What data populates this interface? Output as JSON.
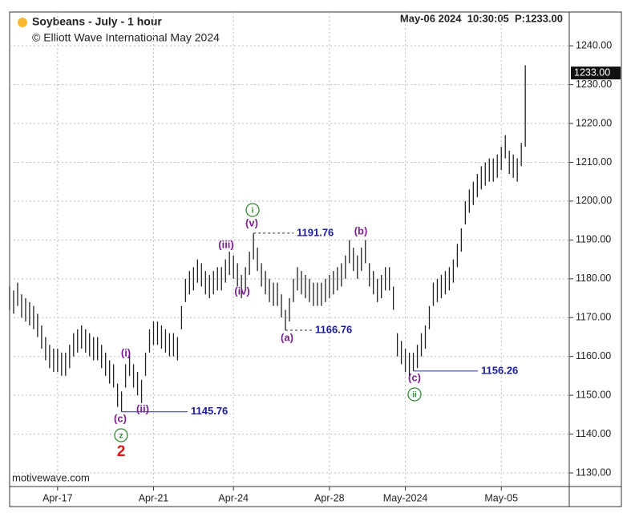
{
  "chart_data": {
    "type": "range-bar",
    "title": "Soybeans - July - 1 hour",
    "subtitle": "© Elliott Wave International May 2024",
    "status": "May-06 2024  10:30:05  P:1233.00",
    "watermark": "motivewave.com",
    "color": "#222222",
    "high": [
      1178,
      1177,
      1179,
      1176,
      1175,
      1174,
      1173,
      1171,
      1168,
      1165,
      1163,
      1162,
      1162,
      1161,
      1161,
      1163,
      1166,
      1167,
      1168,
      1167,
      1166,
      1165,
      1165,
      1163,
      1161,
      1159,
      1158,
      1153,
      1151,
      1158,
      1161,
      1158,
      1156,
      1154,
      1161,
      1167,
      1169,
      1169,
      1168,
      1167,
      1166,
      1166,
      1165,
      1173,
      1180,
      1182,
      1183,
      1185,
      1184,
      1182,
      1181,
      1182,
      1183,
      1183,
      1185,
      1187,
      1186,
      1184,
      1181,
      1183,
      1187,
      1191.76,
      1188,
      1184,
      1182,
      1180,
      1179,
      1179,
      1176,
      1172,
      1175,
      1180,
      1183,
      1182,
      1181,
      1180,
      1179,
      1179,
      1179,
      1180,
      1181,
      1182,
      1183,
      1184,
      1186,
      1190,
      1188,
      1186,
      1188,
      1190,
      1184,
      1182,
      1180,
      1181,
      1183,
      1183,
      1178,
      1166,
      1164,
      1162,
      1161,
      1161,
      1163,
      1166,
      1168,
      1173,
      1179,
      1180,
      1181,
      1182,
      1183,
      1185,
      1189,
      1193,
      1200,
      1203,
      1205,
      1207,
      1209,
      1210,
      1211,
      1211,
      1212,
      1214,
      1217,
      1213,
      1212,
      1211,
      1215,
      1235
    ],
    "low": [
      1172,
      1171,
      1173,
      1170,
      1169,
      1168,
      1167,
      1165,
      1162,
      1159,
      1157,
      1156,
      1156,
      1155,
      1155,
      1157,
      1160,
      1161,
      1162,
      1161,
      1160,
      1159,
      1159,
      1157,
      1155,
      1153,
      1152,
      1147,
      1145.76,
      1152,
      1155,
      1152,
      1150,
      1148,
      1155,
      1161,
      1163,
      1163,
      1162,
      1161,
      1160,
      1160,
      1159,
      1167,
      1174,
      1176,
      1177,
      1179,
      1178,
      1176,
      1175,
      1176,
      1177,
      1177,
      1179,
      1181,
      1180,
      1178,
      1175,
      1177,
      1181,
      1185,
      1182,
      1178,
      1176,
      1174,
      1173,
      1173,
      1170,
      1166.76,
      1169,
      1174,
      1177,
      1176,
      1175,
      1174,
      1173,
      1173,
      1173,
      1174,
      1175,
      1176,
      1177,
      1178,
      1180,
      1184,
      1182,
      1180,
      1182,
      1184,
      1178,
      1176,
      1174,
      1175,
      1177,
      1177,
      1172,
      1160,
      1158,
      1156,
      1155,
      1156.26,
      1157,
      1160,
      1162,
      1167,
      1173,
      1174,
      1175,
      1176,
      1177,
      1179,
      1183,
      1187,
      1194,
      1197,
      1199,
      1201,
      1203,
      1204,
      1205,
      1205,
      1206,
      1208,
      1211,
      1207,
      1206,
      1205,
      1209,
      1214
    ],
    "xlim": [
      0,
      140
    ],
    "xticks": [
      {
        "value": 12,
        "label": "Apr-17"
      },
      {
        "value": 36,
        "label": "Apr-21"
      },
      {
        "value": 56,
        "label": "Apr-24"
      },
      {
        "value": 80,
        "label": "Apr-28"
      },
      {
        "value": 99,
        "label": "May-2024"
      },
      {
        "value": 123,
        "label": "May-05"
      }
    ],
    "ylim": [
      1126.5,
      1248.7
    ],
    "yticks": [
      {
        "value": 1130,
        "label": "1130.00"
      },
      {
        "value": 1140,
        "label": "1140.00"
      },
      {
        "value": 1150,
        "label": "1150.00"
      },
      {
        "value": 1160,
        "label": "1160.00"
      },
      {
        "value": 1170,
        "label": "1170.00"
      },
      {
        "value": 1180,
        "label": "1180.00"
      },
      {
        "value": 1190,
        "label": "1190.00"
      },
      {
        "value": 1200,
        "label": "1200.00"
      },
      {
        "value": 1210,
        "label": "1210.00"
      },
      {
        "value": 1220,
        "label": "1220.00"
      },
      {
        "value": 1230,
        "label": "1230.00"
      },
      {
        "value": 1240,
        "label": "1240.00"
      }
    ],
    "grid": true,
    "last_price": {
      "value": 1233,
      "label": "1233.00"
    },
    "levels": [
      1145.76,
      1191.76,
      1166.76,
      1156.26
    ],
    "annotations": [
      "(c)",
      "(i)",
      "(ii)",
      "(iii)",
      "(iv)",
      "(v)",
      "i",
      "(a)",
      "(b)",
      "(c)",
      "ii",
      "z",
      "2"
    ]
  }
}
